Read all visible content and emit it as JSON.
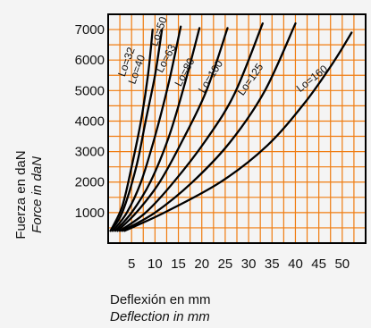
{
  "chart_data": {
    "type": "line",
    "xlabel": "Deflexión en mm",
    "xlabel_en": "Deflection in mm",
    "ylabel": "Fuerza en daN",
    "ylabel_en": "Force in daN",
    "xlim": [
      0,
      55
    ],
    "ylim": [
      0,
      7500
    ],
    "grid": true,
    "x_ticks": [
      5,
      10,
      15,
      20,
      25,
      30,
      35,
      40,
      45,
      50
    ],
    "y_ticks": [
      1000,
      2000,
      3000,
      4000,
      5000,
      6000,
      7000
    ],
    "colors": {
      "background": "#f4f4f4",
      "grid": "#f07c10",
      "curves": "#000000",
      "frame": "#000000"
    },
    "series": [
      {
        "name": "Lo=32",
        "points": [
          [
            0.5,
            400
          ],
          [
            3,
            1200
          ],
          [
            5,
            2500
          ],
          [
            7,
            4000
          ],
          [
            8.5,
            5500
          ],
          [
            9.5,
            7000
          ]
        ]
      },
      {
        "name": "Lo=40",
        "points": [
          [
            0.5,
            400
          ],
          [
            3,
            1000
          ],
          [
            6,
            2500
          ],
          [
            8,
            4000
          ],
          [
            10,
            5500
          ],
          [
            11.5,
            7000
          ]
        ]
      },
      {
        "name": "Lo=50",
        "points": [
          [
            1,
            400
          ],
          [
            4,
            1000
          ],
          [
            7,
            2000
          ],
          [
            10,
            3500
          ],
          [
            13,
            5300
          ],
          [
            15.5,
            7100
          ]
        ]
      },
      {
        "name": "Lo=63",
        "points": [
          [
            1.5,
            400
          ],
          [
            5,
            1000
          ],
          [
            9,
            2000
          ],
          [
            13,
            3500
          ],
          [
            16.5,
            5300
          ],
          [
            19.5,
            7050
          ]
        ]
      },
      {
        "name": "Lo=80",
        "points": [
          [
            2,
            400
          ],
          [
            6,
            1000
          ],
          [
            11,
            2000
          ],
          [
            16,
            3400
          ],
          [
            21,
            5000
          ],
          [
            25.5,
            7050
          ]
        ]
      },
      {
        "name": "Lo=100",
        "points": [
          [
            2.5,
            400
          ],
          [
            8,
            1000
          ],
          [
            14,
            2000
          ],
          [
            21,
            3400
          ],
          [
            27,
            4900
          ],
          [
            33,
            7200
          ]
        ]
      },
      {
        "name": "Lo=125",
        "points": [
          [
            3,
            400
          ],
          [
            10,
            1000
          ],
          [
            18,
            2000
          ],
          [
            26,
            3300
          ],
          [
            33.5,
            5000
          ],
          [
            40,
            7200
          ]
        ]
      },
      {
        "name": "Lo=160",
        "points": [
          [
            3.5,
            400
          ],
          [
            12,
            1000
          ],
          [
            24,
            2000
          ],
          [
            34,
            3200
          ],
          [
            42,
            4600
          ],
          [
            48,
            5900
          ],
          [
            52,
            6900
          ]
        ]
      }
    ]
  }
}
